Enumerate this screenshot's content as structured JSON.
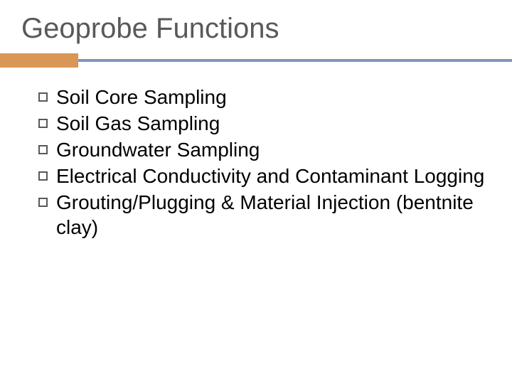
{
  "slide": {
    "title": "Geoprobe Functions",
    "title_color": "#595959",
    "title_fontsize": 40,
    "rule": {
      "line_color": "#7b98b8",
      "line_height": 4,
      "accent_color": "#d99656",
      "accent_width": 110,
      "accent_height": 20
    },
    "bullets": [
      {
        "text": "Soil Core Sampling"
      },
      {
        "text": "Soil Gas Sampling"
      },
      {
        "text": "Groundwater Sampling"
      },
      {
        "text": "Electrical Conductivity and Contaminant Logging"
      },
      {
        "text": "Grouting/Plugging & Material Injection (bentnite clay)"
      }
    ],
    "bullet_fontsize": 28,
    "bullet_text_color": "#000000",
    "bullet_box_border_color": "#595959",
    "background_color": "#ffffff"
  }
}
